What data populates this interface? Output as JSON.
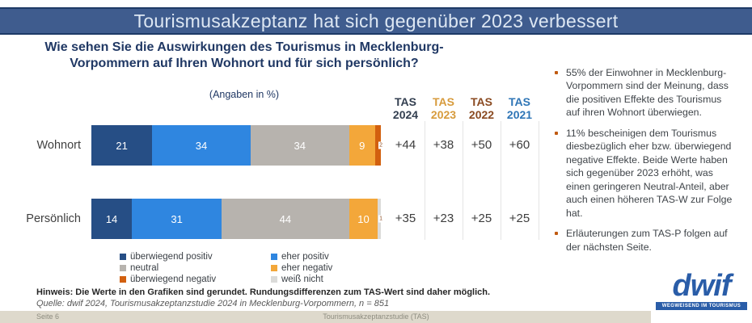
{
  "title_bar": {
    "text": "Tourismusakzeptanz hat sich gegenüber 2023 verbessert",
    "bg": "#3f5c8e",
    "border": "#1d3a66"
  },
  "question": {
    "text": "Wie sehen Sie die Auswirkungen des Tourismus in Mecklenburg-Vorpommern auf Ihren Wohnort und für sich persönlich?",
    "subtitle": "(Angaben in %)"
  },
  "chart_data": {
    "type": "bar",
    "stacked": true,
    "orientation": "horizontal",
    "unit": "%",
    "xlim": [
      0,
      100
    ],
    "grid": false,
    "legend_position": "bottom",
    "categories": [
      "Wohnort",
      "Persönlich"
    ],
    "series": [
      {
        "name": "überwiegend positiv",
        "color": "#264e85",
        "values": [
          21,
          14
        ]
      },
      {
        "name": "eher positiv",
        "color": "#2f86e0",
        "values": [
          34,
          31
        ]
      },
      {
        "name": "neutral",
        "color": "#b7b3ae",
        "values": [
          34,
          44
        ]
      },
      {
        "name": "eher negativ",
        "color": "#f3a73a",
        "values": [
          9,
          10
        ]
      },
      {
        "name": "überwiegend negativ",
        "color": "#d2600f",
        "values": [
          2,
          0
        ]
      },
      {
        "name": "weiß nicht",
        "color": "#dbdbd9",
        "values": [
          0,
          1
        ]
      }
    ],
    "legend_columns": [
      [
        "überwiegend positiv",
        "neutral",
        "überwiegend negativ"
      ],
      [
        "eher positiv",
        "eher negativ",
        "weiß nicht"
      ]
    ]
  },
  "tas_table": {
    "columns": [
      {
        "name": "TAS",
        "year": "2024",
        "color": "#333f50"
      },
      {
        "name": "TAS",
        "year": "2023",
        "color": "#d79b3c"
      },
      {
        "name": "TAS",
        "year": "2022",
        "color": "#8a4a21"
      },
      {
        "name": "TAS",
        "year": "2021",
        "color": "#2e75b6"
      }
    ],
    "rows": [
      {
        "category": "Wohnort",
        "values": [
          "+44",
          "+38",
          "+50",
          "+60"
        ]
      },
      {
        "category": "Persönlich",
        "values": [
          "+35",
          "+23",
          "+25",
          "+25"
        ]
      }
    ]
  },
  "sidebar": {
    "bullet_color": "#c05a11",
    "bullets": [
      "55% der Einwohner in Mecklenburg-Vorpommern sind der Meinung, dass die positiven Effekte des Tourismus auf ihren Wohnort überwiegen.",
      "11% bescheinigen dem Tourismus diesbezüglich eher bzw. überwiegend negative Effekte. Beide Werte haben sich gegenüber 2023 erhöht, was einen geringeren Neutral-Anteil, aber auch einen höheren TAS-W zur Folge hat.",
      "Erläuterungen zum TAS-P folgen auf der nächsten Seite."
    ]
  },
  "footer": {
    "hinweis": "Hinweis: Die Werte in den Grafiken sind gerundet. Rundungsdifferenzen zum TAS-Wert sind daher möglich.",
    "quelle": "Quelle: dwif 2024, Tourismusakzeptanzstudie 2024 in Mecklenburg-Vorpommern, n = 851",
    "page_label": "Seite 6",
    "center_label": "Tourismusakzeptanzstudie (TAS)"
  },
  "logo": {
    "name": "dwif",
    "tagline": "WEGWEISEND IM TOURISMUS",
    "color": "#2a5da8"
  }
}
